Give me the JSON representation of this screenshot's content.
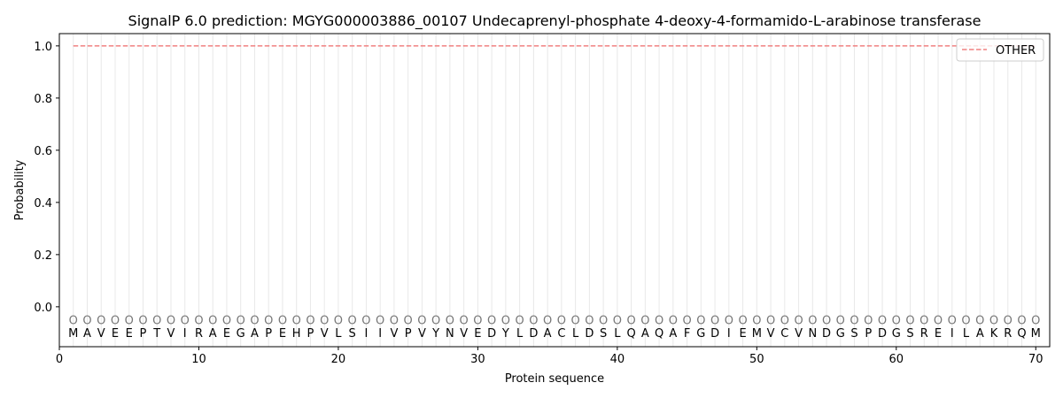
{
  "chart_data": {
    "type": "line",
    "title": "SignalP 6.0 prediction: MGYG000003886_00107 Undecaprenyl-phosphate 4-deoxy-4-formamido-L-arabinose transferase",
    "xlabel": "Protein sequence",
    "ylabel": "Probability",
    "xlim": [
      0,
      71
    ],
    "ylim": [
      -0.153,
      1.047
    ],
    "xticks": [
      0,
      10,
      20,
      30,
      40,
      50,
      60,
      70
    ],
    "yticks": [
      0.0,
      0.2,
      0.4,
      0.6,
      0.8,
      1.0
    ],
    "ytick_labels": [
      "0.0",
      "0.2",
      "0.4",
      "0.6",
      "0.8",
      "1.0"
    ],
    "grid": "vertical lines at each residue",
    "legend_position": "top-right",
    "sequence": [
      "M",
      "A",
      "V",
      "E",
      "E",
      "P",
      "T",
      "V",
      "I",
      "R",
      "A",
      "E",
      "G",
      "A",
      "P",
      "E",
      "H",
      "P",
      "V",
      "L",
      "S",
      "I",
      "I",
      "V",
      "P",
      "V",
      "Y",
      "N",
      "V",
      "E",
      "D",
      "Y",
      "L",
      "D",
      "A",
      "C",
      "L",
      "D",
      "S",
      "L",
      "Q",
      "A",
      "Q",
      "A",
      "F",
      "G",
      "D",
      "I",
      "E",
      "M",
      "V",
      "C",
      "V",
      "N",
      "D",
      "G",
      "S",
      "P",
      "D",
      "G",
      "S",
      "R",
      "E",
      "I",
      "L",
      "A",
      "K",
      "R",
      "Q",
      "M"
    ],
    "prediction_label": "O",
    "series": [
      {
        "name": "OTHER",
        "color": "#f08080",
        "style": "dashed",
        "x_range": [
          1,
          70
        ],
        "value": 1.0
      }
    ]
  }
}
